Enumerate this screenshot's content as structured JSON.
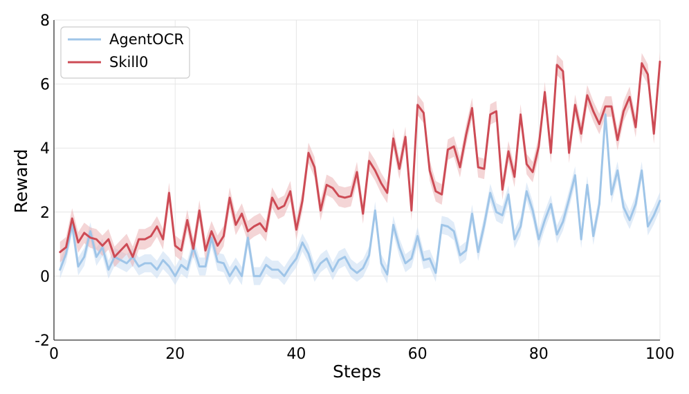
{
  "chart_data": {
    "type": "line",
    "xlabel": "Steps",
    "ylabel": "Reward",
    "xlim": [
      0,
      100
    ],
    "ylim": [
      -2,
      8
    ],
    "xticks": [
      "0",
      "20",
      "40",
      "60",
      "80",
      "100"
    ],
    "yticks": [
      "-2",
      "0",
      "2",
      "4",
      "6",
      "8"
    ],
    "grid": true,
    "legend_position": "top-left",
    "series": [
      {
        "name": "AgentOCR",
        "color": "#9fc5e8",
        "band_color": "#c9ddf3",
        "x": [
          1,
          2,
          3,
          4,
          5,
          6,
          7,
          8,
          9,
          10,
          11,
          12,
          13,
          14,
          15,
          16,
          17,
          18,
          19,
          20,
          21,
          22,
          23,
          24,
          25,
          26,
          27,
          28,
          29,
          30,
          31,
          32,
          33,
          34,
          35,
          36,
          37,
          38,
          39,
          40,
          41,
          42,
          43,
          44,
          45,
          46,
          47,
          48,
          49,
          50,
          51,
          52,
          53,
          54,
          55,
          56,
          57,
          58,
          59,
          60,
          61,
          62,
          63,
          64,
          65,
          66,
          67,
          68,
          69,
          70,
          71,
          72,
          73,
          74,
          75,
          76,
          77,
          78,
          79,
          80,
          81,
          82,
          83,
          84,
          85,
          86,
          87,
          88,
          89,
          90,
          91,
          92,
          93,
          94,
          95,
          96,
          97,
          98,
          99,
          100
        ],
        "values": [
          0.2,
          0.7,
          1.6,
          0.3,
          0.6,
          1.4,
          0.6,
          0.9,
          0.2,
          0.6,
          0.5,
          0.4,
          0.6,
          0.3,
          0.4,
          0.4,
          0.2,
          0.5,
          0.3,
          0.0,
          0.35,
          0.2,
          0.9,
          0.3,
          0.3,
          1.2,
          0.45,
          0.4,
          0.0,
          0.3,
          0.0,
          1.2,
          0.0,
          0.0,
          0.35,
          0.2,
          0.2,
          0.0,
          0.3,
          0.55,
          1.05,
          0.7,
          0.1,
          0.4,
          0.55,
          0.15,
          0.5,
          0.6,
          0.25,
          0.1,
          0.25,
          0.65,
          2.05,
          0.4,
          0.05,
          1.6,
          0.9,
          0.4,
          0.55,
          1.25,
          0.5,
          0.55,
          0.1,
          1.6,
          1.55,
          1.4,
          0.65,
          0.8,
          1.95,
          0.75,
          1.6,
          2.6,
          2.0,
          1.9,
          2.55,
          1.15,
          1.55,
          2.65,
          2.05,
          1.15,
          1.75,
          2.25,
          1.3,
          1.7,
          2.4,
          3.15,
          1.15,
          2.85,
          1.25,
          2.25,
          5.05,
          2.55,
          3.3,
          2.15,
          1.75,
          2.25,
          3.3,
          1.55,
          1.9,
          2.35
        ]
      },
      {
        "name": "Skill0",
        "color": "#cd4b55",
        "band_color": "#ebb2b5",
        "x": [
          1,
          2,
          3,
          4,
          5,
          6,
          7,
          8,
          9,
          10,
          11,
          12,
          13,
          14,
          15,
          16,
          17,
          18,
          19,
          20,
          21,
          22,
          23,
          24,
          25,
          26,
          27,
          28,
          29,
          30,
          31,
          32,
          33,
          34,
          35,
          36,
          37,
          38,
          39,
          40,
          41,
          42,
          43,
          44,
          45,
          46,
          47,
          48,
          49,
          50,
          51,
          52,
          53,
          54,
          55,
          56,
          57,
          58,
          59,
          60,
          61,
          62,
          63,
          64,
          65,
          66,
          67,
          68,
          69,
          70,
          71,
          72,
          73,
          74,
          75,
          76,
          77,
          78,
          79,
          80,
          81,
          82,
          83,
          84,
          85,
          86,
          87,
          88,
          89,
          90,
          91,
          92,
          93,
          94,
          95,
          96,
          97,
          98,
          99,
          100
        ],
        "values": [
          0.75,
          0.9,
          1.8,
          1.05,
          1.35,
          1.2,
          1.15,
          0.95,
          1.15,
          0.6,
          0.8,
          1.0,
          0.6,
          1.15,
          1.15,
          1.25,
          1.55,
          1.15,
          2.6,
          0.95,
          0.8,
          1.75,
          0.85,
          2.05,
          0.8,
          1.4,
          0.95,
          1.25,
          2.45,
          1.6,
          1.95,
          1.4,
          1.55,
          1.65,
          1.4,
          2.45,
          2.1,
          2.2,
          2.65,
          1.45,
          2.35,
          3.85,
          3.4,
          2.05,
          2.85,
          2.75,
          2.5,
          2.45,
          2.5,
          3.25,
          1.95,
          3.6,
          3.3,
          2.9,
          2.6,
          4.3,
          3.35,
          4.35,
          2.05,
          5.35,
          5.1,
          3.3,
          2.65,
          2.55,
          3.95,
          4.05,
          3.4,
          4.4,
          5.25,
          3.4,
          3.35,
          5.05,
          5.15,
          2.7,
          3.9,
          3.1,
          5.05,
          3.5,
          3.25,
          4.05,
          5.75,
          3.85,
          6.6,
          6.4,
          3.85,
          5.35,
          4.45,
          5.65,
          5.15,
          4.75,
          5.3,
          5.3,
          4.25,
          5.15,
          5.6,
          4.65,
          6.65,
          6.3,
          4.45,
          6.7
        ]
      }
    ]
  }
}
